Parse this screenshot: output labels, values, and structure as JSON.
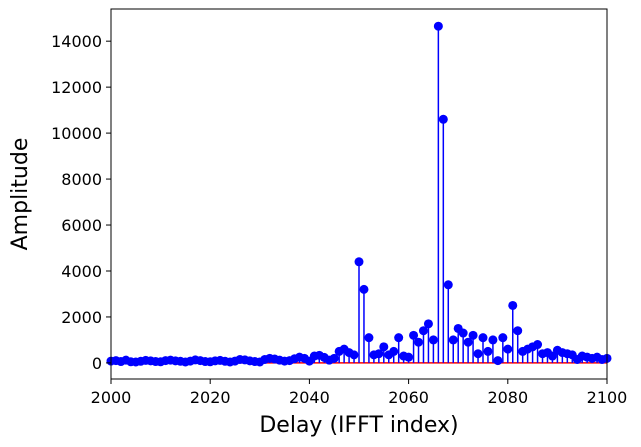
{
  "chart_data": {
    "type": "stem",
    "xlabel": "Delay (IFFT index)",
    "ylabel": "Amplitude",
    "xlim": [
      2000,
      2100
    ],
    "ylim": [
      -700,
      15400
    ],
    "xticks": [
      2000,
      2020,
      2040,
      2060,
      2080,
      2100
    ],
    "yticks": [
      0,
      2000,
      4000,
      6000,
      8000,
      10000,
      12000,
      14000
    ],
    "grid": false,
    "baseline": 0,
    "colors": {
      "stem": "#0000ff",
      "marker": "#0000ff",
      "baseline": "#ff0000"
    },
    "x": [
      2000,
      2001,
      2002,
      2003,
      2004,
      2005,
      2006,
      2007,
      2008,
      2009,
      2010,
      2011,
      2012,
      2013,
      2014,
      2015,
      2016,
      2017,
      2018,
      2019,
      2020,
      2021,
      2022,
      2023,
      2024,
      2025,
      2026,
      2027,
      2028,
      2029,
      2030,
      2031,
      2032,
      2033,
      2034,
      2035,
      2036,
      2037,
      2038,
      2039,
      2040,
      2041,
      2042,
      2043,
      2044,
      2045,
      2046,
      2047,
      2048,
      2049,
      2050,
      2051,
      2052,
      2053,
      2054,
      2055,
      2056,
      2057,
      2058,
      2059,
      2060,
      2061,
      2062,
      2063,
      2064,
      2065,
      2066,
      2067,
      2068,
      2069,
      2070,
      2071,
      2072,
      2073,
      2074,
      2075,
      2076,
      2077,
      2078,
      2079,
      2080,
      2081,
      2082,
      2083,
      2084,
      2085,
      2086,
      2087,
      2088,
      2089,
      2090,
      2091,
      2092,
      2093,
      2094,
      2095,
      2096,
      2097,
      2098,
      2099,
      2100
    ],
    "y": [
      80,
      100,
      60,
      120,
      50,
      40,
      70,
      110,
      90,
      60,
      50,
      100,
      120,
      90,
      70,
      40,
      80,
      130,
      100,
      60,
      50,
      90,
      110,
      70,
      40,
      80,
      150,
      130,
      90,
      60,
      40,
      150,
      200,
      170,
      120,
      80,
      100,
      180,
      250,
      200,
      80,
      300,
      330,
      240,
      120,
      200,
      500,
      600,
      450,
      350,
      4400,
      3200,
      1100,
      350,
      400,
      700,
      350,
      500,
      1100,
      300,
      250,
      1200,
      900,
      1400,
      1700,
      1000,
      14650,
      10600,
      3400,
      1000,
      1500,
      1300,
      900,
      1200,
      400,
      1100,
      500,
      1000,
      100,
      1100,
      600,
      2500,
      1400,
      500,
      600,
      700,
      800,
      400,
      450,
      300,
      550,
      450,
      400,
      350,
      150,
      300,
      250,
      200,
      250,
      150,
      200
    ]
  }
}
